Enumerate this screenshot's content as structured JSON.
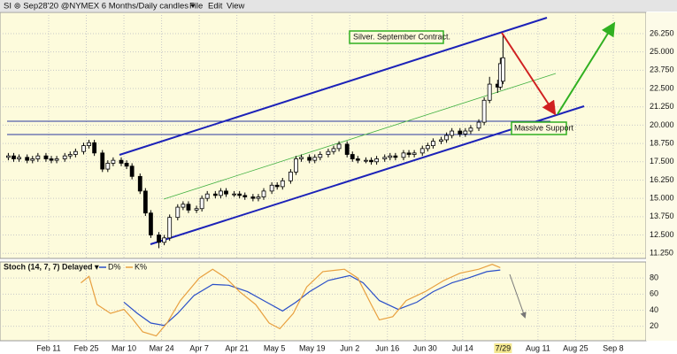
{
  "header": {
    "symbol": "SI ⊚ Sep28'20 @NYMEX 6 Months/Daily candles ▾",
    "menu": [
      "File",
      "Edit",
      "View"
    ]
  },
  "chart_data": [
    {
      "type": "candlestick",
      "annotations": [
        "Silver. September Contract.",
        "Massive Support"
      ],
      "x": [
        27,
        29,
        31,
        34,
        36,
        38,
        41,
        43,
        45,
        48,
        50,
        52,
        55,
        57,
        59,
        62,
        64,
        66,
        69,
        71,
        73,
        76,
        78,
        80,
        83,
        85,
        87,
        90,
        92,
        94,
        97,
        99,
        101,
        104,
        106,
        108,
        111,
        113,
        115,
        118,
        120,
        122,
        125,
        127,
        129,
        132,
        134,
        136,
        139,
        141,
        143,
        146,
        148,
        150,
        153,
        155,
        157,
        160,
        162,
        164,
        167,
        169,
        171,
        174,
        176,
        178,
        181,
        183,
        185,
        188,
        190,
        192,
        195,
        197,
        199,
        202,
        204,
        206,
        209,
        210,
        211
      ],
      "open": [
        17.8,
        17.9,
        17.7,
        17.8,
        17.6,
        17.7,
        17.9,
        17.7,
        17.6,
        17.7,
        17.9,
        18.0,
        18.2,
        18.6,
        18.8,
        18.1,
        17.0,
        17.4,
        17.6,
        17.4,
        17.2,
        16.5,
        15.5,
        14.0,
        12.5,
        12.0,
        12.3,
        13.7,
        14.4,
        14.6,
        14.2,
        14.3,
        15.0,
        15.3,
        15.2,
        15.5,
        15.3,
        15.3,
        15.2,
        15.1,
        15.0,
        15.1,
        15.5,
        15.9,
        15.8,
        16.2,
        16.8,
        17.7,
        17.8,
        17.6,
        17.8,
        18.0,
        18.2,
        18.4,
        18.7,
        18.0,
        17.7,
        17.6,
        17.6,
        17.5,
        17.7,
        17.8,
        17.9,
        17.8,
        18.1,
        18.0,
        18.1,
        18.4,
        18.6,
        18.9,
        19.0,
        19.3,
        19.6,
        19.4,
        19.6,
        19.8,
        20.2,
        21.7,
        22.8,
        22.6,
        23.0
      ],
      "high": [
        18.1,
        18.1,
        18.0,
        18.0,
        17.9,
        18.1,
        18.1,
        17.9,
        17.9,
        18.1,
        18.2,
        18.4,
        18.8,
        19.0,
        19.0,
        18.3,
        17.6,
        17.8,
        17.8,
        17.6,
        17.4,
        16.7,
        15.7,
        14.2,
        12.7,
        12.5,
        13.9,
        14.6,
        14.8,
        14.8,
        14.5,
        15.2,
        15.5,
        15.5,
        15.7,
        15.7,
        15.5,
        15.5,
        15.4,
        15.3,
        15.3,
        15.7,
        16.1,
        16.1,
        16.4,
        17.0,
        17.9,
        18.0,
        18.0,
        18.0,
        18.2,
        18.4,
        18.6,
        18.9,
        18.9,
        18.2,
        17.9,
        17.8,
        17.8,
        17.9,
        18.0,
        18.1,
        18.1,
        18.3,
        18.3,
        18.3,
        18.6,
        18.8,
        19.1,
        19.2,
        19.5,
        19.8,
        19.8,
        19.8,
        20.0,
        20.4,
        21.9,
        23.3,
        23.1,
        24.6,
        26.2
      ],
      "low": [
        17.6,
        17.5,
        17.5,
        17.4,
        17.4,
        17.5,
        17.5,
        17.4,
        17.4,
        17.5,
        17.7,
        17.8,
        18.0,
        18.4,
        17.9,
        16.8,
        16.8,
        17.2,
        17.2,
        17.0,
        16.3,
        15.3,
        13.8,
        12.3,
        11.6,
        11.8,
        12.1,
        13.5,
        14.2,
        14.0,
        14.0,
        14.1,
        14.8,
        15.0,
        15.0,
        15.1,
        15.1,
        15.0,
        14.9,
        14.8,
        14.8,
        14.9,
        15.3,
        15.6,
        15.6,
        16.0,
        16.6,
        17.5,
        17.4,
        17.4,
        17.6,
        17.8,
        18.0,
        18.2,
        17.8,
        17.5,
        17.4,
        17.4,
        17.3,
        17.3,
        17.5,
        17.6,
        17.6,
        17.6,
        17.8,
        17.8,
        17.9,
        18.2,
        18.4,
        18.7,
        18.8,
        19.1,
        19.2,
        19.2,
        19.4,
        19.6,
        20.0,
        21.5,
        22.2,
        22.4,
        22.8
      ],
      "close": [
        17.9,
        17.7,
        17.8,
        17.6,
        17.7,
        17.9,
        17.7,
        17.6,
        17.7,
        17.9,
        18.0,
        18.2,
        18.6,
        18.8,
        18.1,
        17.0,
        17.4,
        17.6,
        17.4,
        17.2,
        16.5,
        15.5,
        14.0,
        12.5,
        12.0,
        12.3,
        13.7,
        14.4,
        14.6,
        14.2,
        14.3,
        15.0,
        15.3,
        15.2,
        15.5,
        15.3,
        15.3,
        15.2,
        15.1,
        15.0,
        15.1,
        15.5,
        15.9,
        15.8,
        16.2,
        16.8,
        17.7,
        17.8,
        17.6,
        17.8,
        18.0,
        18.2,
        18.4,
        18.7,
        18.0,
        17.7,
        17.6,
        17.6,
        17.5,
        17.7,
        17.8,
        17.9,
        17.8,
        18.1,
        18.0,
        18.1,
        18.4,
        18.6,
        18.9,
        19.0,
        19.3,
        19.6,
        19.4,
        19.6,
        19.8,
        20.2,
        21.7,
        22.8,
        22.6,
        24.2,
        24.6
      ],
      "up_color": "#ffffff",
      "down_color": "#000000",
      "ylim": [
        10.9,
        27.7
      ],
      "yticks": [
        {
          "value": 11.25,
          "label": "11.250"
        },
        {
          "value": 12.5,
          "label": "12.500"
        },
        {
          "value": 13.75,
          "label": "13.750"
        },
        {
          "value": 15,
          "label": "15.000"
        },
        {
          "value": 16.25,
          "label": "16.250"
        },
        {
          "value": 17.5,
          "label": "17.500"
        },
        {
          "value": 18.75,
          "label": "18.750"
        },
        {
          "value": 20,
          "label": "20.000"
        },
        {
          "value": 21.25,
          "label": "21.250"
        },
        {
          "value": 22.5,
          "label": "22.500"
        },
        {
          "value": 23.75,
          "label": "23.750"
        },
        {
          "value": 25,
          "label": "25.000"
        },
        {
          "value": 26.25,
          "label": "26.250"
        }
      ],
      "grid": true
    },
    {
      "type": "line",
      "title": "Stoch (14, 7, 7) Delayed ▾",
      "series": [
        {
          "name": "D%",
          "color": "#2a4fc8",
          "x": [
            70,
            75,
            80,
            85,
            90,
            96,
            103,
            109,
            116,
            123,
            129,
            134,
            139,
            146,
            154,
            159,
            165,
            172,
            179,
            185,
            192,
            198,
            205,
            210
          ],
          "values": [
            50,
            36,
            24,
            21,
            36,
            58,
            72,
            71,
            63,
            50,
            39,
            50,
            63,
            77,
            83,
            74,
            52,
            41,
            50,
            63,
            74,
            80,
            88,
            90
          ]
        },
        {
          "name": "K%",
          "color": "#e8a040",
          "x": [
            54,
            57,
            60,
            65,
            70,
            73,
            77,
            82,
            86,
            91,
            98,
            103,
            108,
            113,
            119,
            124,
            128,
            133,
            138,
            144,
            152,
            157,
            162,
            165,
            170,
            175,
            182,
            189,
            195,
            202,
            207,
            210
          ],
          "values": [
            74,
            82,
            47,
            36,
            41,
            30,
            13,
            8,
            24,
            52,
            80,
            91,
            80,
            63,
            47,
            24,
            17,
            36,
            69,
            88,
            91,
            80,
            47,
            28,
            32,
            52,
            63,
            77,
            86,
            91,
            97,
            93
          ]
        }
      ],
      "ylim": [
        2,
        100
      ],
      "yticks": [
        20,
        40,
        60,
        80
      ],
      "xlim": [
        23.9,
        264.2
      ],
      "xticks": [
        {
          "value": 42,
          "label": "Feb 11"
        },
        {
          "value": 56,
          "label": "Feb 25"
        },
        {
          "value": 70,
          "label": "Mar 10"
        },
        {
          "value": 84,
          "label": "Mar 24"
        },
        {
          "value": 98,
          "label": "Apr 7"
        },
        {
          "value": 112,
          "label": "Apr 21"
        },
        {
          "value": 126,
          "label": "May 5"
        },
        {
          "value": 140,
          "label": "May 19"
        },
        {
          "value": 154,
          "label": "Jun 2"
        },
        {
          "value": 168,
          "label": "Jun 16"
        },
        {
          "value": 182,
          "label": "Jun 30"
        },
        {
          "value": 196,
          "label": "Jul 14"
        },
        {
          "value": 224,
          "label": "Aug 11"
        },
        {
          "value": 238,
          "label": "Aug 25"
        },
        {
          "value": 252,
          "label": "Sep 8"
        }
      ],
      "cursor": {
        "value": 211,
        "label": "7/29"
      },
      "grid": true
    }
  ]
}
